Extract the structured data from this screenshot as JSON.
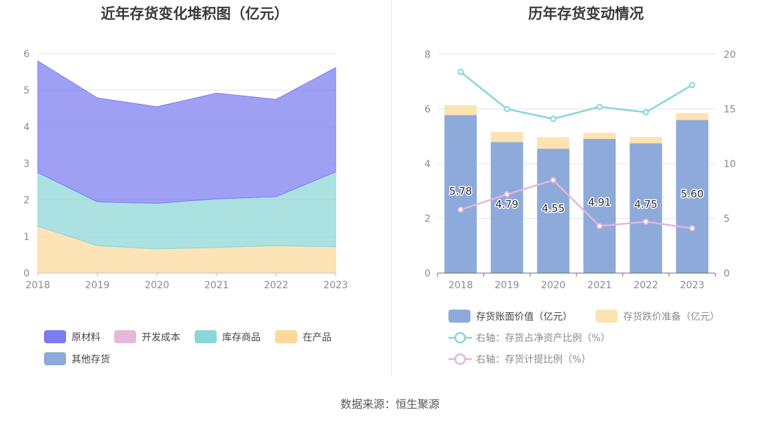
{
  "source_text": "数据来源：恒生聚源",
  "chart_data": [
    {
      "type": "area",
      "stacked": true,
      "title": "近年存货变化堆积图（亿元）",
      "x": [
        "2018",
        "2019",
        "2020",
        "2021",
        "2022",
        "2023"
      ],
      "ylim": [
        0,
        6
      ],
      "yticks": [
        "0",
        "1",
        "2",
        "3",
        "4",
        "5",
        "6"
      ],
      "series": [
        {
          "name": "在产品",
          "color": "#fcd99a",
          "values": [
            1.28,
            0.75,
            0.66,
            0.7,
            0.75,
            0.72
          ]
        },
        {
          "name": "库存商品",
          "color": "#8ad6d6",
          "values": [
            1.47,
            1.2,
            1.25,
            1.33,
            1.34,
            2.05
          ]
        },
        {
          "name": "开发成本",
          "color": "#e8b8d8",
          "values": [
            0,
            0,
            0,
            0,
            0,
            0
          ]
        },
        {
          "name": "其他存货",
          "color": "#8eaadb",
          "values": [
            0,
            0,
            0,
            0,
            0,
            0
          ]
        },
        {
          "name": "原材料",
          "color": "#7a7cf0",
          "values": [
            3.05,
            2.84,
            2.64,
            2.89,
            2.66,
            2.85
          ]
        }
      ],
      "legend": [
        {
          "name": "原材料",
          "color": "#7a7cf0"
        },
        {
          "name": "开发成本",
          "color": "#e8b8d8"
        },
        {
          "name": "库存商品",
          "color": "#8ad6d6"
        },
        {
          "name": "在产品",
          "color": "#fcd99a"
        },
        {
          "name": "其他存货",
          "color": "#8eaadb"
        }
      ]
    },
    {
      "type": "bar",
      "stacked": true,
      "title": "历年存货变动情况",
      "categories": [
        "2018",
        "2019",
        "2020",
        "2021",
        "2022",
        "2023"
      ],
      "ylim": [
        0,
        8
      ],
      "yticks": [
        "0",
        "2",
        "4",
        "6",
        "8"
      ],
      "y2lim": [
        0,
        20
      ],
      "y2ticks": [
        "0",
        "5",
        "10",
        "15",
        "20"
      ],
      "series": [
        {
          "name": "存货账面价值（亿元）",
          "type": "bar",
          "color": "#8eaadb",
          "values": [
            5.78,
            4.79,
            4.55,
            4.91,
            4.75,
            5.6
          ],
          "labels": [
            "5.78",
            "4.79",
            "4.55",
            "4.91",
            "4.75",
            "5.60"
          ]
        },
        {
          "name": "存货跌价准备（亿元）",
          "type": "bar",
          "color": "#fde3b0",
          "values": [
            0.36,
            0.37,
            0.42,
            0.22,
            0.23,
            0.25
          ]
        },
        {
          "name": "右轴：存货占净资产比例（%）",
          "type": "line",
          "axis": "right",
          "color": "#86d4d8",
          "values": [
            18.4,
            15.0,
            14.1,
            15.2,
            14.7,
            17.2
          ]
        },
        {
          "name": "右轴：存货计提比例（%）",
          "type": "line",
          "axis": "right",
          "color": "#e2b6da",
          "values": [
            5.8,
            7.2,
            8.5,
            4.3,
            4.7,
            4.1
          ]
        }
      ]
    }
  ]
}
